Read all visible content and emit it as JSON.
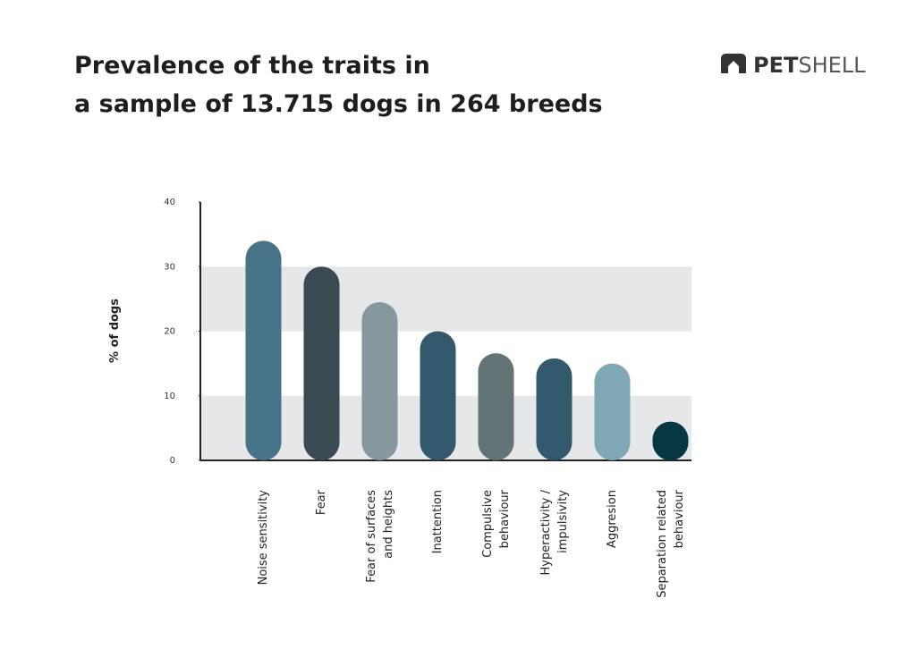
{
  "chart_data": {
    "type": "bar",
    "title": "Prevalence of the traits in\na sample of 13.715 dogs in 264 breeds",
    "brand": {
      "bold": "PET",
      "light": "SHELL"
    },
    "y_label": "% of dogs",
    "categories": [
      "Noise sensitivity",
      "Fear",
      "Fear of surfaces\nand heights",
      "Inattention",
      "Compulsive\nbehaviour",
      "Hyperactivity /\nimpulsivity",
      "Aggresion",
      "Separation related\nbehaviour"
    ],
    "values": [
      34,
      30,
      24.5,
      20,
      16.6,
      15.8,
      15,
      6
    ],
    "colors": [
      "#477389",
      "#3a4a52",
      "#84989e",
      "#335a6c",
      "#637477",
      "#335a6c",
      "#7fa7b6",
      "#063743"
    ],
    "ylim": [
      0,
      40
    ],
    "yticks": [
      0,
      10,
      20,
      30,
      40
    ],
    "grid": "bands",
    "band_color": "#e6e7e8"
  }
}
